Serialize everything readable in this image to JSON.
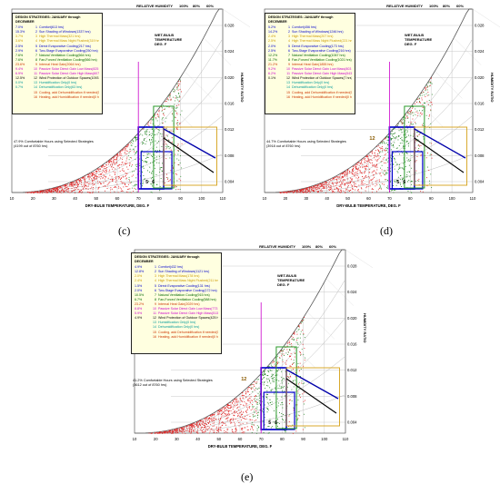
{
  "panels": [
    {
      "label": "(c)",
      "header": "DESIGN STRATEGIES: JANUARY through DECEMBER",
      "strategies": [
        {
          "pct": "7.0%",
          "num": "1",
          "text": "Comfort(613 hrs)",
          "color": "#0000cc"
        },
        {
          "pct": "15.3%",
          "num": "2",
          "text": "Sun Shading of Windows(1337 hrs)",
          "color": "#0000cc"
        },
        {
          "pct": "3.7%",
          "num": "3",
          "text": "High Thermal Mass(321 hrs)",
          "color": "#cc9900"
        },
        {
          "pct": "3.6%",
          "num": "4",
          "text": "High Thermal Mass Night Flushed(319 hrs)",
          "color": "#cc9900"
        },
        {
          "pct": "2.5%",
          "num": "5",
          "text": "Direct Evaporative Cooling(217 hrs)",
          "color": "#0000cc"
        },
        {
          "pct": "2.9%",
          "num": "6",
          "text": "Two-Stage Evaporative Cooling(250 hrs)",
          "color": "#0000cc"
        },
        {
          "pct": "7.6%",
          "num": "7",
          "text": "Natural Ventilation Cooling(664 hrs)",
          "color": "#006600"
        },
        {
          "pct": "7.6%",
          "num": "8",
          "text": "Fan-Forced Ventilation Cooling(666 hrs)",
          "color": "#006600"
        },
        {
          "pct": "23.6%",
          "num": "9",
          "text": "Internal Heat Gain(2064 hrs)",
          "color": "#cc3300"
        },
        {
          "pct": "9.4%",
          "num": "10",
          "text": "Passive Solar Direct Gain Low Mass(825 hrs)",
          "color": "#cc00cc"
        },
        {
          "pct": "6.9%",
          "num": "11",
          "text": "Passive Solar Direct Gain High Mass(607 hrs)",
          "color": "#cc00cc"
        },
        {
          "pct": "12.5%",
          "num": "12",
          "text": "Wind Protection of Outdoor Spaces(1093 hrs)",
          "color": "#000000"
        },
        {
          "pct": "0.0%",
          "num": "13",
          "text": "Humidification Only(0 hrs)",
          "color": "#009999"
        },
        {
          "pct": "0.7%",
          "num": "14",
          "text": "Dehumidification Only(63 hrs)",
          "color": "#009999"
        },
        {
          "pct": "",
          "num": "15",
          "text": "Cooling, add Dehumidification if needed(0 hrs)",
          "color": "#cc3300"
        },
        {
          "pct": "",
          "num": "16",
          "text": "Heating, add Humidification if needed(0 hrs)",
          "color": "#cc3300"
        }
      ],
      "summary1": "47.9%  Comfortable Hours using Selected Strategies",
      "summary2": "(4199 out of 8760 hrs)"
    },
    {
      "label": "(d)",
      "header": "DESIGN STRATEGIES: JANUARY through DECEMBER",
      "strategies": [
        {
          "pct": "5.2%",
          "num": "1",
          "text": "Comfort(456 hrs)",
          "color": "#0000cc"
        },
        {
          "pct": "14.2%",
          "num": "2",
          "text": "Sun Shading of Windows(1246 hrs)",
          "color": "#0000cc"
        },
        {
          "pct": "2.4%",
          "num": "3",
          "text": "High Thermal Mass(207 hrs)",
          "color": "#cc9900"
        },
        {
          "pct": "2.5%",
          "num": "4",
          "text": "High Thermal Mass Night Flushed(221 hrs)",
          "color": "#cc9900"
        },
        {
          "pct": "2.0%",
          "num": "5",
          "text": "Direct Evaporative Cooling(173 hrs)",
          "color": "#0000cc"
        },
        {
          "pct": "2.5%",
          "num": "6",
          "text": "Two-Stage Evaporative Cooling(216 hrs)",
          "color": "#0000cc"
        },
        {
          "pct": "12.2%",
          "num": "7",
          "text": "Natural Ventilation Cooling(1067 hrs)",
          "color": "#006600"
        },
        {
          "pct": "11.7%",
          "num": "8",
          "text": "Fan-Forced Ventilation Cooling(1021 hrs)",
          "color": "#006600"
        },
        {
          "pct": "21.2%",
          "num": "9",
          "text": "Internal Heat Gain(1855 hrs)",
          "color": "#cc3300"
        },
        {
          "pct": "9.2%",
          "num": "10",
          "text": "Passive Solar Direct Gain Low Mass(803 hrs)",
          "color": "#cc00cc"
        },
        {
          "pct": "6.2%",
          "num": "11",
          "text": "Passive Solar Direct Gain High Mass(543 hrs)",
          "color": "#cc00cc"
        },
        {
          "pct": "0.1%",
          "num": "12",
          "text": "Wind Protection of Outdoor Spaces(7 hrs)",
          "color": "#000000"
        },
        {
          "pct": "",
          "num": "13",
          "text": "Humidification Only(0 hrs)",
          "color": "#009999"
        },
        {
          "pct": "",
          "num": "14",
          "text": "Dehumidification Only(0 hrs)",
          "color": "#009999"
        },
        {
          "pct": "",
          "num": "15",
          "text": "Cooling, add Dehumidification if needed(0 hrs)",
          "color": "#cc3300"
        },
        {
          "pct": "",
          "num": "16",
          "text": "Heating, add Humidification if needed(0 hrs)",
          "color": "#cc3300"
        }
      ],
      "summary1": "44.7%  Comfortable Hours using Selected Strategies",
      "summary2": "(3918 out of 8760 hrs)"
    },
    {
      "label": "(e)",
      "header": "DESIGN STRATEGIES: JANUARY through DECEMBER",
      "strategies": [
        {
          "pct": "4.9%",
          "num": "1",
          "text": "Comfort(432 hrs)",
          "color": "#0000cc"
        },
        {
          "pct": "12.8%",
          "num": "2",
          "text": "Sun Shading of Windows(1121 hrs)",
          "color": "#0000cc"
        },
        {
          "pct": "2.0%",
          "num": "3",
          "text": "High Thermal Mass(178 hrs)",
          "color": "#cc9900"
        },
        {
          "pct": "2.4%",
          "num": "4",
          "text": "High Thermal Mass Night Flushed(211 hrs)",
          "color": "#cc9900"
        },
        {
          "pct": "1.5%",
          "num": "5",
          "text": "Direct Evaporative Cooling(131 hrs)",
          "color": "#0000cc"
        },
        {
          "pct": "2.0%",
          "num": "6",
          "text": "Two-Stage Evaporative Cooling(172 hrs)",
          "color": "#0000cc"
        },
        {
          "pct": "10.5%",
          "num": "7",
          "text": "Natural Ventilation Cooling(915 hrs)",
          "color": "#006600"
        },
        {
          "pct": "6.7%",
          "num": "8",
          "text": "Fan-Forced Ventilation Cooling(588 hrs)",
          "color": "#006600"
        },
        {
          "pct": "23.2%",
          "num": "9",
          "text": "Internal Heat Gain(2029 hrs)",
          "color": "#cc3300"
        },
        {
          "pct": "8.8%",
          "num": "10",
          "text": "Passive Solar Direct Gain Low Mass(773 hrs)",
          "color": "#cc00cc"
        },
        {
          "pct": "5.9%",
          "num": "11",
          "text": "Passive Solar Direct Gain High Mass(513 hrs)",
          "color": "#cc00cc"
        },
        {
          "pct": "4.9%",
          "num": "12",
          "text": "Wind Protection of Outdoor Spaces(425 hrs)",
          "color": "#000000"
        },
        {
          "pct": "",
          "num": "13",
          "text": "Humidification Only(0 hrs)",
          "color": "#009999"
        },
        {
          "pct": "",
          "num": "14",
          "text": "Dehumidification Only(0 hrs)",
          "color": "#009999"
        },
        {
          "pct": "",
          "num": "15",
          "text": "Cooling, add Dehumidification if needed(0 hrs)",
          "color": "#cc3300"
        },
        {
          "pct": "",
          "num": "16",
          "text": "Heating, add Humidification if needed(0 hrs)",
          "color": "#cc3300"
        }
      ],
      "summary1": "41.2%  Comfortable Hours using Selected Strategies",
      "summary2": "(3612 out of 8760 hrs)"
    }
  ],
  "chart": {
    "relative_humidity_label": "RELATIVE HUMIDITY",
    "rh_ticks": [
      "100%",
      "80%",
      "60%"
    ],
    "wet_bulb_label_1": "WET-BULB",
    "wet_bulb_label_2": "TEMPERATURE",
    "wet_bulb_label_3": "DEG. F",
    "humidity_ratio_label": "HUMIDITY RATIO",
    "x_axis_label": "DRY-BULB TEMPERATURE, DEG. F",
    "x_ticks": [
      "10",
      "20",
      "30",
      "40",
      "50",
      "60",
      "70",
      "80",
      "90",
      "100",
      "110"
    ],
    "y_ticks": [
      "0.028",
      "0.024",
      "0.020",
      "0.016",
      "0.012",
      "0.008",
      "0.004"
    ],
    "zone_labels": [
      "5",
      "6"
    ],
    "marker_label": "12"
  }
}
